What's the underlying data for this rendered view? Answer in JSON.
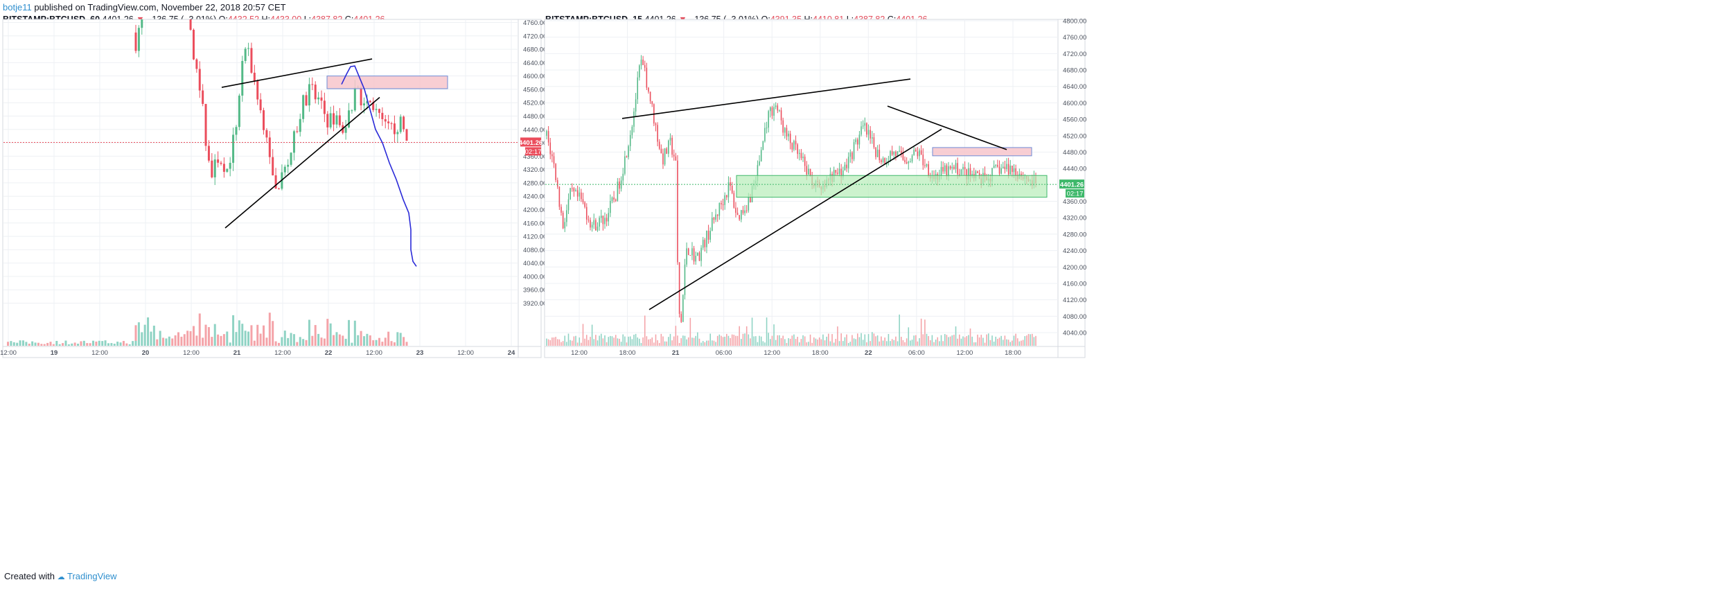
{
  "header": {
    "author": "botje11",
    "published": "published on TradingView.com, November 22, 2018 20:57 CET"
  },
  "footer": {
    "created_with": "Created with",
    "brand": "TradingView"
  },
  "colors": {
    "up": "#53b987",
    "down": "#eb4d5c",
    "vol_up": "#8fd3c4",
    "vol_down": "#f4a3a8",
    "drawing_line": "#000000",
    "curve": "#2a2ad8",
    "resistance_fill": "#f7c5cb",
    "support_fill": "#b6ecb8"
  },
  "chart_data": [
    {
      "type": "candlestick",
      "symbol": "BITSTAMP:BTCUSD, 60",
      "last": "4401.26",
      "change": "−136.75 (−3.01%)",
      "O": "4432.52",
      "H": "4433.00",
      "L": "4387.82",
      "C": "4401.26",
      "price_tag": "4401.26",
      "countdown": "02:17",
      "ylim": [
        3880,
        4800
      ],
      "y_ticks": [
        "4760.00",
        "4720.00",
        "4680.00",
        "4640.00",
        "4600.00",
        "4560.00",
        "4520.00",
        "4480.00",
        "4440.00",
        "4400.00",
        "4360.00",
        "4320.00",
        "4280.00",
        "4240.00",
        "4200.00",
        "4160.00",
        "4120.00",
        "4080.00",
        "4040.00",
        "4000.00",
        "3960.00",
        "3920.00"
      ],
      "x_ticks": [
        "12:00",
        "19",
        "12:00",
        "20",
        "12:00",
        "21",
        "12:00",
        "22",
        "12:00",
        "23",
        "12:00",
        "24"
      ],
      "bold_x_ticks": [
        "19",
        "20",
        "21",
        "22",
        "23",
        "24"
      ],
      "grid": true,
      "annotations": {
        "trend_upper": [
          [
            4566,
            4651
          ]
        ],
        "trend_lower": [
          [
            4145,
            4536
          ]
        ],
        "resistance_box": [
          4562,
          4600
        ],
        "projection_curve_end": 4030
      }
    },
    {
      "type": "candlestick",
      "symbol": "BITSTAMP:BTCUSD, 15",
      "last": "4401.26",
      "change": "−136.75 (−3.01%)",
      "O": "4391.35",
      "H": "4410.81",
      "L": "4387.82",
      "C": "4401.26",
      "price_tag": "4401.26",
      "countdown": "02:17",
      "ylim": [
        4000,
        4800
      ],
      "y_ticks": [
        "4800.00",
        "4760.00",
        "4720.00",
        "4680.00",
        "4640.00",
        "4600.00",
        "4560.00",
        "4520.00",
        "4480.00",
        "4440.00",
        "4401.26",
        "4360.00",
        "4320.00",
        "4280.00",
        "4240.00",
        "4200.00",
        "4160.00",
        "4120.00",
        "4080.00",
        "4040.00"
      ],
      "x_ticks": [
        "12:00",
        "18:00",
        "21",
        "06:00",
        "12:00",
        "18:00",
        "22",
        "06:00",
        "12:00",
        "18:00"
      ],
      "bold_x_ticks": [
        "21",
        "22"
      ],
      "grid": true,
      "annotations": {
        "resistance_box": [
          4476,
          4486
        ],
        "support_box": [
          4370,
          4423
        ]
      }
    }
  ]
}
